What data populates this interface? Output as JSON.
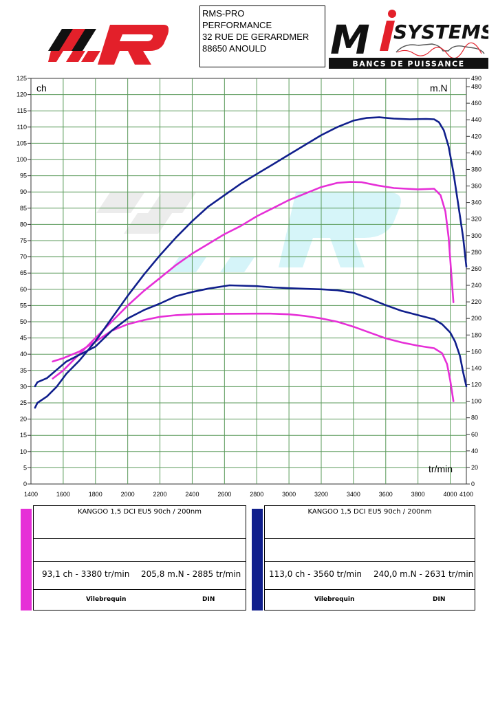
{
  "header": {
    "address_lines": [
      "RMS-PRO",
      "PERFORMANCE",
      "32 RUE DE GERARDMER",
      "88650 ANOULD"
    ],
    "logo_left_letter": "R",
    "logo_right_main": "SYSTEMS",
    "logo_right_prefix": "M",
    "logo_right_tagline": "BANCS DE PUISSANCE"
  },
  "colors": {
    "run_a": "#e62fd7",
    "run_b": "#101f8c",
    "grid": "#5a9a5a",
    "logo_red": "#e3202a",
    "logo_dark": "#111111"
  },
  "chart_data": {
    "type": "line",
    "xlabel": "tr/min",
    "ylabel_left": "ch",
    "ylabel_right": "m.N",
    "xlim": [
      1400,
      4100
    ],
    "ylim_left": [
      0,
      125
    ],
    "ylim_right": [
      0,
      490
    ],
    "x_ticks": [
      1400,
      1600,
      1800,
      2000,
      2200,
      2400,
      2600,
      2800,
      3000,
      3200,
      3400,
      3600,
      3800,
      4000,
      4100
    ],
    "y_left_ticks": [
      0,
      5,
      10,
      15,
      20,
      25,
      30,
      35,
      40,
      45,
      50,
      55,
      60,
      65,
      70,
      75,
      80,
      85,
      90,
      95,
      100,
      105,
      110,
      115,
      120,
      125
    ],
    "y_right_ticks": [
      0,
      20,
      40,
      60,
      80,
      100,
      120,
      140,
      160,
      180,
      200,
      220,
      240,
      260,
      280,
      300,
      320,
      340,
      360,
      380,
      400,
      420,
      440,
      460,
      480,
      490
    ],
    "grid": true,
    "series": [
      {
        "name": "",
        "quantity": "power",
        "axis": "left",
        "color": "#e62fd7",
        "points": [
          [
            1535,
            32.5
          ],
          [
            1600,
            35
          ],
          [
            1700,
            40
          ],
          [
            1800,
            45
          ],
          [
            1900,
            50
          ],
          [
            2000,
            55
          ],
          [
            2100,
            59.5
          ],
          [
            2200,
            63.5
          ],
          [
            2300,
            67.5
          ],
          [
            2400,
            71
          ],
          [
            2500,
            74
          ],
          [
            2600,
            77
          ],
          [
            2700,
            79.5
          ],
          [
            2800,
            82.5
          ],
          [
            2900,
            85
          ],
          [
            3000,
            87.5
          ],
          [
            3100,
            89.5
          ],
          [
            3200,
            91.5
          ],
          [
            3300,
            92.8
          ],
          [
            3380,
            93.1
          ],
          [
            3450,
            93
          ],
          [
            3550,
            92
          ],
          [
            3650,
            91.2
          ],
          [
            3800,
            90.8
          ],
          [
            3900,
            91
          ],
          [
            3940,
            89
          ],
          [
            3970,
            84
          ],
          [
            3990,
            76
          ],
          [
            4005,
            66
          ],
          [
            4020,
            56
          ]
        ]
      },
      {
        "name": "",
        "quantity": "torque",
        "axis": "right",
        "color": "#e62fd7",
        "points": [
          [
            1535,
            148
          ],
          [
            1600,
            152
          ],
          [
            1700,
            160
          ],
          [
            1800,
            172
          ],
          [
            1900,
            185
          ],
          [
            2000,
            193
          ],
          [
            2100,
            198
          ],
          [
            2200,
            202
          ],
          [
            2300,
            204
          ],
          [
            2400,
            205
          ],
          [
            2500,
            205.4
          ],
          [
            2600,
            205.6
          ],
          [
            2700,
            205.7
          ],
          [
            2800,
            205.8
          ],
          [
            2885,
            205.8
          ],
          [
            3000,
            205
          ],
          [
            3100,
            203
          ],
          [
            3200,
            200
          ],
          [
            3300,
            196
          ],
          [
            3400,
            190
          ],
          [
            3500,
            183
          ],
          [
            3600,
            176
          ],
          [
            3700,
            171
          ],
          [
            3800,
            167
          ],
          [
            3900,
            164
          ],
          [
            3950,
            158
          ],
          [
            3980,
            145
          ],
          [
            4000,
            125
          ],
          [
            4020,
            100
          ]
        ]
      },
      {
        "name": "",
        "quantity": "power",
        "axis": "left",
        "color": "#101f8c",
        "points": [
          [
            1425,
            23.5
          ],
          [
            1440,
            25
          ],
          [
            1500,
            27
          ],
          [
            1560,
            30
          ],
          [
            1620,
            34
          ],
          [
            1700,
            38
          ],
          [
            1800,
            44
          ],
          [
            1900,
            51
          ],
          [
            2000,
            58
          ],
          [
            2100,
            64.5
          ],
          [
            2200,
            70.5
          ],
          [
            2300,
            76
          ],
          [
            2400,
            81
          ],
          [
            2500,
            85.5
          ],
          [
            2600,
            89
          ],
          [
            2700,
            92.5
          ],
          [
            2800,
            95.5
          ],
          [
            2900,
            98.5
          ],
          [
            3000,
            101.5
          ],
          [
            3100,
            104.5
          ],
          [
            3200,
            107.5
          ],
          [
            3300,
            110
          ],
          [
            3400,
            112
          ],
          [
            3480,
            112.8
          ],
          [
            3560,
            113
          ],
          [
            3650,
            112.6
          ],
          [
            3750,
            112.4
          ],
          [
            3850,
            112.5
          ],
          [
            3900,
            112.4
          ],
          [
            3930,
            111.5
          ],
          [
            3960,
            109
          ],
          [
            3990,
            104
          ],
          [
            4020,
            96
          ],
          [
            4050,
            86
          ],
          [
            4080,
            76
          ],
          [
            4100,
            67
          ]
        ]
      },
      {
        "name": "",
        "quantity": "torque",
        "axis": "right",
        "color": "#101f8c",
        "points": [
          [
            1425,
            118
          ],
          [
            1440,
            123
          ],
          [
            1500,
            128
          ],
          [
            1560,
            138
          ],
          [
            1620,
            148
          ],
          [
            1700,
            156
          ],
          [
            1800,
            166
          ],
          [
            1900,
            185
          ],
          [
            2000,
            200
          ],
          [
            2100,
            210
          ],
          [
            2200,
            218
          ],
          [
            2300,
            227
          ],
          [
            2400,
            232
          ],
          [
            2500,
            236
          ],
          [
            2631,
            240
          ],
          [
            2700,
            239.6
          ],
          [
            2800,
            239
          ],
          [
            2900,
            237.5
          ],
          [
            3000,
            236.5
          ],
          [
            3100,
            235.8
          ],
          [
            3200,
            235.2
          ],
          [
            3300,
            234
          ],
          [
            3400,
            231
          ],
          [
            3500,
            224
          ],
          [
            3600,
            216
          ],
          [
            3700,
            209
          ],
          [
            3800,
            204
          ],
          [
            3900,
            199
          ],
          [
            3950,
            193
          ],
          [
            4000,
            183
          ],
          [
            4030,
            172
          ],
          [
            4060,
            155
          ],
          [
            4080,
            135
          ],
          [
            4100,
            118
          ]
        ]
      }
    ]
  },
  "results": [
    {
      "color": "#e62fd7",
      "vehicle": "KANGOO 1,5 DCI EU5 90ch / 200nm",
      "power_peak": "93,1 ch - 3380 tr/min",
      "torque_peak": "205,8 m.N - 2885 tr/min",
      "measure": "Vilebrequin",
      "norm": "DIN"
    },
    {
      "color": "#101f8c",
      "vehicle": "KANGOO 1,5 DCI EU5 90ch / 200nm",
      "power_peak": "113,0 ch - 3560 tr/min",
      "torque_peak": "240,0 m.N - 2631 tr/min",
      "measure": "Vilebrequin",
      "norm": "DIN"
    }
  ]
}
